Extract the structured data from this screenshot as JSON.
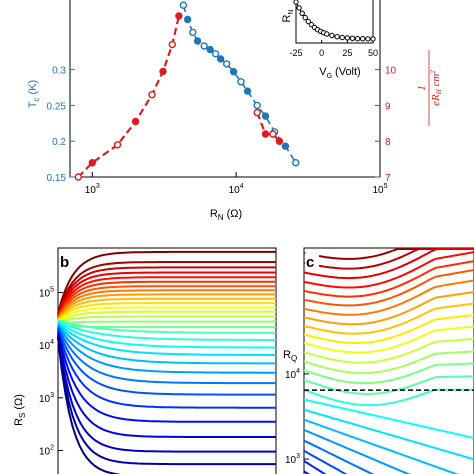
{
  "chart_data": [
    {
      "id": "a",
      "type": "scatter",
      "xscale": "log",
      "xlim": [
        700,
        100000
      ],
      "x_ticks": [
        1000,
        10000,
        100000
      ],
      "xlabel_main": "R",
      "xlabel_sub": "N",
      "xlabel_unit": "(Ω)",
      "ylabel_left_main": "T",
      "ylabel_left_sub": "c",
      "ylabel_left_unit": "(K)",
      "ylim_left": [
        0.15,
        0.4
      ],
      "yticks_left": [
        "0.15",
        "0.2",
        "0.25",
        "0.3"
      ],
      "ylim_right": [
        7,
        12
      ],
      "yticks_right": [
        "7",
        "8",
        "9",
        "10"
      ],
      "ylabel_right": "1/(eR_H cm²)",
      "colors": {
        "left": "#1f77b4",
        "right": "#dd1c1c"
      },
      "series": [
        {
          "axis": "left",
          "x": [
            4300,
            4600,
            5000,
            5400,
            6000,
            6600,
            7200,
            7800,
            8600,
            9600,
            10800,
            12000,
            14000,
            16000,
            18500,
            22000,
            26000
          ],
          "y": [
            0.39,
            0.37,
            0.352,
            0.34,
            0.333,
            0.328,
            0.322,
            0.315,
            0.308,
            0.297,
            0.283,
            0.27,
            0.25,
            0.235,
            0.213,
            0.193,
            0.17
          ]
        },
        {
          "axis": "right",
          "x": [
            800,
            1000,
            1500,
            2000,
            2600,
            3100,
            3600,
            4000
          ],
          "y": [
            7.0,
            7.4,
            7.9,
            8.55,
            9.3,
            9.95,
            10.7,
            11.5
          ]
        },
        {
          "axis": "right",
          "x": [
            14000,
            16000,
            18000,
            20000
          ],
          "y": [
            8.8,
            8.2,
            8.2,
            8.0
          ]
        }
      ]
    },
    {
      "id": "a-inset",
      "type": "line",
      "xlim": [
        -25,
        50
      ],
      "x_ticks": [
        "-25",
        "0",
        "25",
        "50"
      ],
      "xlabel": "V",
      "xlabel_sub": "G",
      "xlabel_unit": "(Volt)",
      "ylabel": "R",
      "ylabel_sub": "N",
      "x": [
        -25,
        -22,
        -19,
        -16,
        -13,
        -10,
        -7,
        -4,
        -1,
        2,
        5,
        10,
        15,
        20,
        25,
        30,
        35,
        40,
        45,
        50
      ],
      "y": [
        1.0,
        0.85,
        0.71,
        0.6,
        0.5,
        0.42,
        0.35,
        0.29,
        0.25,
        0.21,
        0.18,
        0.14,
        0.11,
        0.09,
        0.08,
        0.07,
        0.06,
        0.06,
        0.055,
        0.055
      ]
    },
    {
      "id": "b",
      "type": "line",
      "panel_label": "b",
      "yscale": "log",
      "ylim": [
        30,
        700000
      ],
      "y_ticks": [
        100,
        1000,
        10000,
        100000
      ],
      "ylabel_main": "R",
      "ylabel_sub": "S",
      "ylabel_unit": "(Ω)",
      "series_count": 30,
      "levels": [
        590000,
        380000,
        300000,
        240000,
        195000,
        160000,
        132000,
        110000,
        92000,
        76000,
        63000,
        52000,
        43000,
        35000,
        28000,
        22000,
        17000,
        12500,
        9000,
        6500,
        4500,
        3000,
        1900,
        1150,
        650,
        350,
        180,
        95,
        55,
        32
      ]
    },
    {
      "id": "c",
      "type": "line",
      "panel_label": "c",
      "yscale": "log",
      "ylim": [
        600,
        300000
      ],
      "y_ticks": [
        1000,
        10000
      ],
      "rq_label_main": "R",
      "rq_label_sub": "Q",
      "rq_value": 6450,
      "series_count": 26,
      "levels": [
        260000,
        200000,
        155000,
        120000,
        94000,
        74000,
        58000,
        46000,
        36500,
        29000,
        23000,
        18000,
        14000,
        11000,
        8500,
        6500,
        5000,
        3800,
        2900,
        2200,
        1650,
        1250,
        950,
        720,
        560,
        430
      ]
    }
  ]
}
